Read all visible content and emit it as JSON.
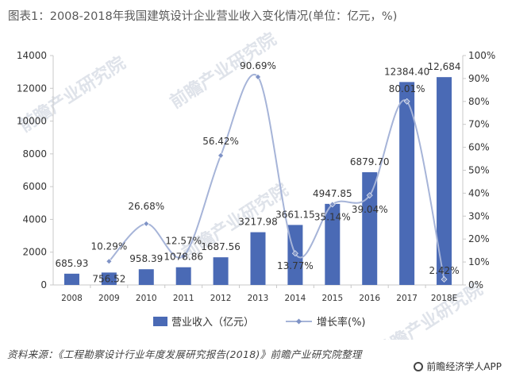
{
  "title": "图表1：2008-2018年我国建筑设计企业营业收入变化情况(单位：亿元，%)",
  "source": "资料来源：《工程勘察设计行业年度发展研究报告(2018)》前瞻产业研究院整理",
  "brand": "前瞻经济学人APP",
  "watermark": "前瞻产业研究院",
  "colors": {
    "bar": "#4a6ab5",
    "line": "#a6b4d8",
    "marker": "#7f93c6",
    "axis": "#c8c8c8",
    "text": "#333333"
  },
  "chart_data": {
    "type": "bar",
    "categories": [
      "2008",
      "2009",
      "2010",
      "2011",
      "2012",
      "2013",
      "2014",
      "2015",
      "2016",
      "2017",
      "2018E"
    ],
    "series": [
      {
        "name": "营业收入（亿元）",
        "type": "bar",
        "axis": "left",
        "values": [
          685.93,
          756.52,
          958.39,
          1078.86,
          1687.56,
          3217.98,
          3661.15,
          4947.85,
          6879.7,
          12384.4,
          12684
        ],
        "labels": [
          "685.93",
          "756.52",
          "958.39",
          "1078.86",
          "1687.56",
          "3217.98",
          "3661.15",
          "4947.85",
          "6879.70",
          "12384.40",
          "12,684"
        ]
      },
      {
        "name": "增长率(%)",
        "type": "line",
        "axis": "right",
        "values": [
          null,
          10.29,
          26.68,
          12.57,
          56.42,
          90.69,
          13.77,
          35.14,
          39.04,
          80.01,
          2.42
        ],
        "labels": [
          "",
          "10.29%",
          "26.68%",
          "12.57%",
          "56.42%",
          "90.69%",
          "13.77%",
          "35.14%",
          "39.04%",
          "80.01%",
          "2.42%"
        ]
      }
    ],
    "ylim_left": [
      0,
      14000
    ],
    "ylim_right": [
      0,
      100
    ],
    "yticks_left": [
      "0",
      "2000",
      "4000",
      "6000",
      "8000",
      "10000",
      "12000",
      "14000"
    ],
    "yticks_right": [
      "0%",
      "10%",
      "20%",
      "30%",
      "40%",
      "50%",
      "60%",
      "70%",
      "80%",
      "90%",
      "100%"
    ],
    "grid": false,
    "legend_position": "bottom"
  }
}
